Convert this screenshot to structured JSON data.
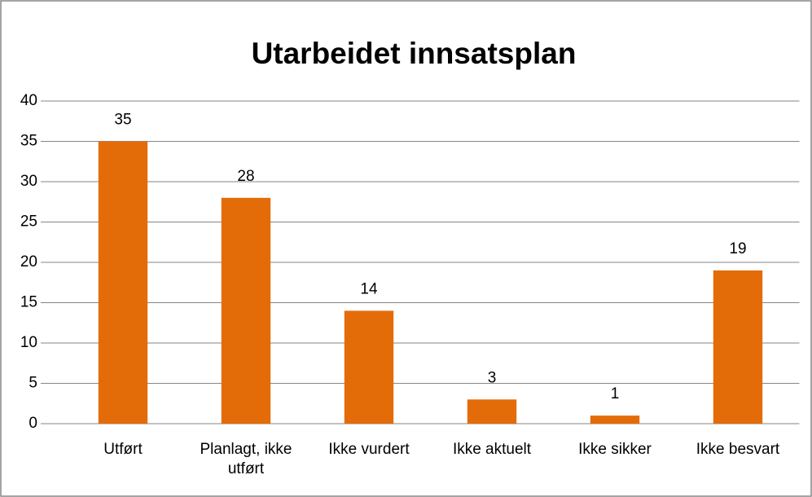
{
  "chart_data": {
    "type": "bar",
    "title": "Utarbeidet innsatsplan",
    "categories": [
      "Utført",
      "Planlagt, ikke utført",
      "Ikke vurdert",
      "Ikke aktuelt",
      "Ikke sikker",
      "Ikke besvart"
    ],
    "values": [
      35,
      28,
      14,
      3,
      1,
      19
    ],
    "color": "#e36c09",
    "ylim": [
      0,
      40
    ],
    "yticks": [
      0,
      5,
      10,
      15,
      20,
      25,
      30,
      35,
      40
    ],
    "grid": true
  }
}
